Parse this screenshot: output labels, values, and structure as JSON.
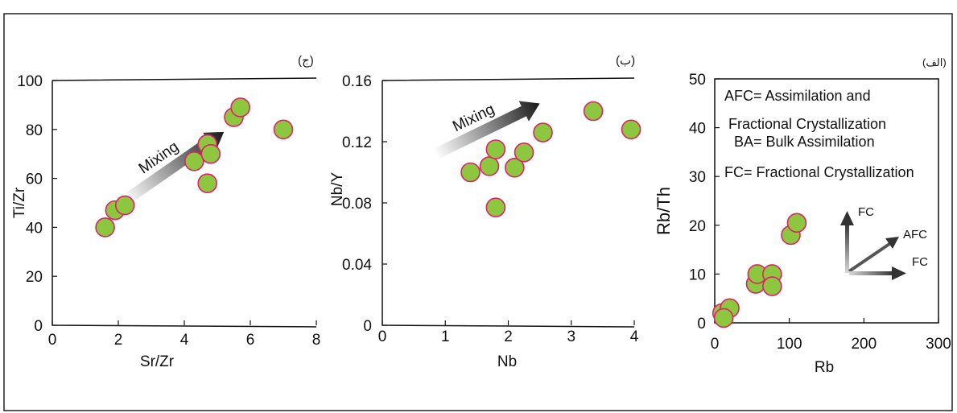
{
  "colors": {
    "marker_fill": "#8dc63f",
    "marker_stroke": "#e0206a",
    "axis": "#111111",
    "frame": "#111111"
  },
  "chart_data": [
    {
      "id": "c",
      "type": "scatter",
      "panel_tag": "(ج)",
      "xlabel": "Sr/Zr",
      "ylabel": "Ti/Zr",
      "xlim": [
        0,
        8
      ],
      "ylim": [
        0,
        100
      ],
      "xticks": [
        "0",
        "2",
        "4",
        "6",
        "8"
      ],
      "yticks": [
        "0",
        "20",
        "40",
        "60",
        "80",
        "100"
      ],
      "points": [
        {
          "x": 1.6,
          "y": 40
        },
        {
          "x": 1.9,
          "y": 47
        },
        {
          "x": 2.2,
          "y": 49
        },
        {
          "x": 4.3,
          "y": 67
        },
        {
          "x": 4.7,
          "y": 74
        },
        {
          "x": 4.8,
          "y": 70
        },
        {
          "x": 4.7,
          "y": 58
        },
        {
          "x": 5.5,
          "y": 85
        },
        {
          "x": 5.7,
          "y": 89
        },
        {
          "x": 7.0,
          "y": 80
        }
      ],
      "arrows": [
        {
          "label": "Mixing",
          "from": [
            2.2,
            51
          ],
          "to": [
            5.2,
            79
          ]
        }
      ]
    },
    {
      "id": "b",
      "type": "scatter",
      "panel_tag": "(ب)",
      "xlabel": "Nb",
      "ylabel": "Nb/Y",
      "xlim": [
        0,
        4
      ],
      "ylim": [
        0,
        0.16
      ],
      "xticks": [
        "0",
        "1",
        "2",
        "3",
        "4"
      ],
      "yticks": [
        "0",
        "0.04",
        "0.08",
        "0.12",
        "0.16"
      ],
      "points": [
        {
          "x": 1.4,
          "y": 0.1
        },
        {
          "x": 1.7,
          "y": 0.104
        },
        {
          "x": 1.8,
          "y": 0.115
        },
        {
          "x": 1.8,
          "y": 0.077
        },
        {
          "x": 2.1,
          "y": 0.103
        },
        {
          "x": 2.25,
          "y": 0.113
        },
        {
          "x": 2.55,
          "y": 0.126
        },
        {
          "x": 3.35,
          "y": 0.14
        },
        {
          "x": 3.95,
          "y": 0.128
        }
      ],
      "arrows": [
        {
          "label": "Mixing",
          "from": [
            0.85,
            0.112
          ],
          "to": [
            2.5,
            0.145
          ]
        }
      ]
    },
    {
      "id": "a",
      "type": "scatter",
      "panel_tag": "(الف)",
      "xlabel": "Rb",
      "ylabel": "Rb/Th",
      "xlim": [
        0,
        300
      ],
      "ylim": [
        0,
        50
      ],
      "xticks": [
        "0",
        "100",
        "200",
        "300"
      ],
      "yticks": [
        "0",
        "10",
        "20",
        "30",
        "40",
        "50"
      ],
      "points": [
        {
          "x": 10,
          "y": 2
        },
        {
          "x": 20,
          "y": 3
        },
        {
          "x": 12,
          "y": 1
        },
        {
          "x": 55,
          "y": 8
        },
        {
          "x": 57,
          "y": 10
        },
        {
          "x": 77,
          "y": 10
        },
        {
          "x": 77,
          "y": 7.5
        },
        {
          "x": 102,
          "y": 18
        },
        {
          "x": 110,
          "y": 20.5
        }
      ],
      "legend_lines": [
        "AFC= Assimilation and",
        "Fractional Crystallization",
        "BA= Bulk Assimilation",
        "FC= Fractional Crystallization"
      ],
      "vectors": [
        {
          "label": "FC",
          "direction": "up"
        },
        {
          "label": "AFC",
          "direction": "diagonal"
        },
        {
          "label": "FC",
          "direction": "right"
        }
      ]
    }
  ]
}
